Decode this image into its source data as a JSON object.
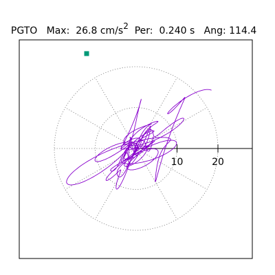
{
  "header": {
    "station": "PGTO",
    "max_label": "Max:",
    "max_value": "26.8 cm/s",
    "max_exp": "2",
    "per_label": "Per:",
    "per_value": "0.240 s",
    "ang_label": "Ang:",
    "ang_value": "114.4"
  },
  "chart_data": {
    "type": "scatter",
    "subtype": "polar-particle-motion",
    "x_tick_labels": [
      "10",
      "20"
    ],
    "x_ticks": [
      10,
      20
    ],
    "ring_radii": [
      10,
      20
    ],
    "max_radius_display": 30,
    "angle_deg": 114.4,
    "max_amplitude": 26.8,
    "unit": "cm/s2",
    "period_s": 0.24,
    "start_marker": {
      "x": -12.1,
      "y": 23.2
    },
    "colors": {
      "trace": "#8800cc",
      "marker": "#009977",
      "grid": "#777777",
      "frame": "#000000"
    },
    "grid": true
  }
}
